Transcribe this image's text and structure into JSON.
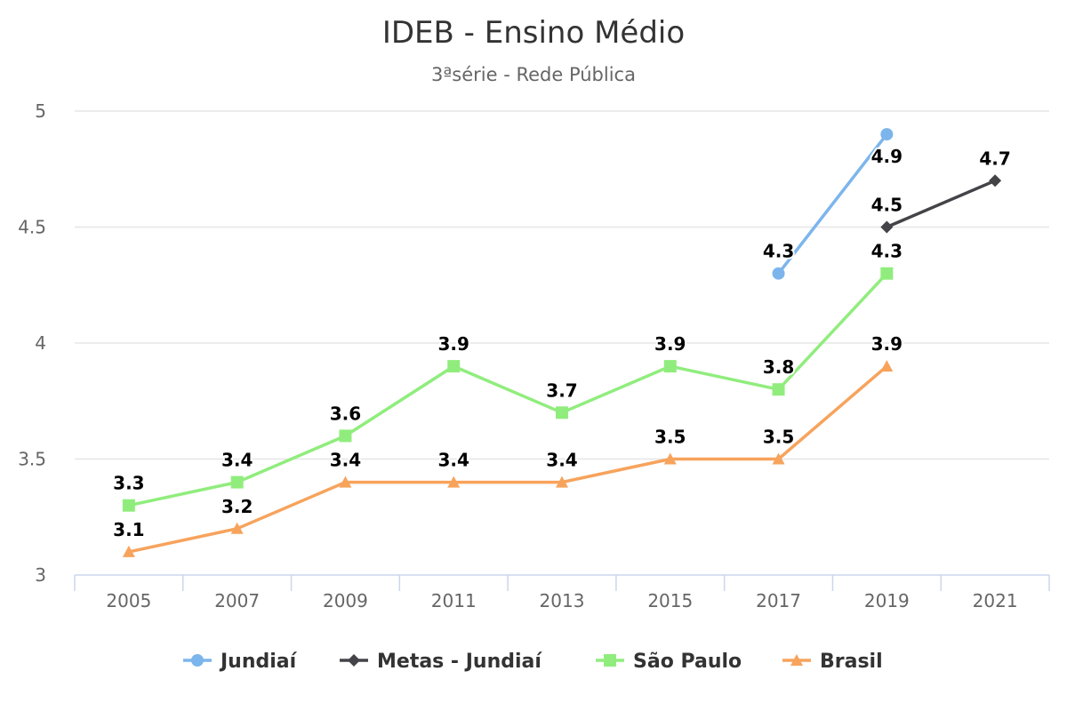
{
  "chart_data": {
    "type": "line",
    "title": "IDEB - Ensino Médio",
    "subtitle": "3ªsérie - Rede Pública",
    "xlabel": "",
    "ylabel": "",
    "categories": [
      "2005",
      "2007",
      "2009",
      "2011",
      "2013",
      "2015",
      "2017",
      "2019",
      "2021"
    ],
    "ylim": [
      3,
      5
    ],
    "yticks": [
      "3",
      "3.5",
      "4",
      "4.5",
      "5"
    ],
    "grid": true,
    "legend_position": "bottom",
    "series": [
      {
        "name": "Jundiaí",
        "color": "#7cb5ec",
        "marker": "circle",
        "values": [
          null,
          null,
          null,
          null,
          null,
          null,
          4.3,
          4.9,
          null
        ],
        "labels": [
          "",
          "",
          "",
          "",
          "",
          "",
          "4.3",
          "4.9",
          ""
        ]
      },
      {
        "name": "Metas - Jundiaí",
        "color": "#434348",
        "marker": "diamond",
        "values": [
          null,
          null,
          null,
          null,
          null,
          null,
          null,
          4.5,
          4.7
        ],
        "labels": [
          "",
          "",
          "",
          "",
          "",
          "",
          "",
          "4.5",
          "4.7"
        ]
      },
      {
        "name": "São Paulo",
        "color": "#90ed7d",
        "marker": "square",
        "values": [
          3.3,
          3.4,
          3.6,
          3.9,
          3.7,
          3.9,
          3.8,
          4.3,
          null
        ],
        "labels": [
          "3.3",
          "3.4",
          "3.6",
          "3.9",
          "3.7",
          "3.9",
          "3.8",
          "4.3",
          ""
        ]
      },
      {
        "name": "Brasil",
        "color": "#f7a35c",
        "marker": "triangle",
        "values": [
          3.1,
          3.2,
          3.4,
          3.4,
          3.4,
          3.5,
          3.5,
          3.9,
          null
        ],
        "labels": [
          "3.1",
          "3.2",
          "3.4",
          "3.4",
          "3.4",
          "3.5",
          "3.5",
          "3.9",
          ""
        ]
      }
    ]
  }
}
